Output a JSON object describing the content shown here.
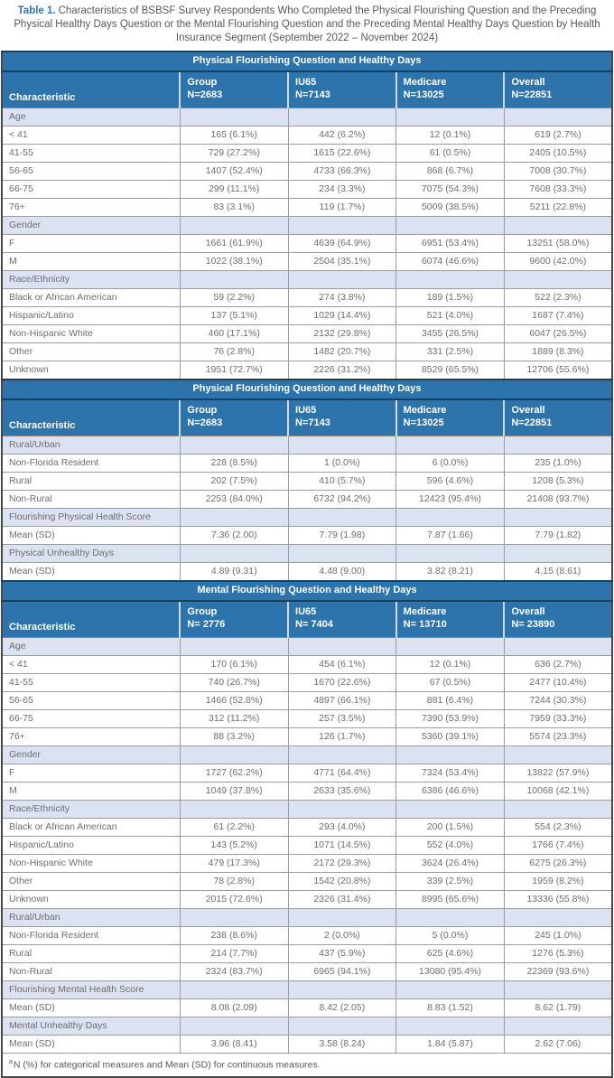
{
  "title": {
    "prefix": "Table 1.",
    "text": "Characteristics of BSBSF Survey Respondents Who Completed the Physical Flourishing Question and the Preceding Physical Healthy Days Question or the Mental Flourishing Question and the Preceding Mental Healthy Days Question by Health Insurance Segment (September 2022 – November 2024)"
  },
  "colors": {
    "band_blue": "#2d74ac",
    "navy_divider": "#17415f",
    "section_row_bg": "#dbe2f1",
    "grid_line": "#9a9c9e",
    "outer_border": "#48484a",
    "body_text": "#6d6e71",
    "title_blue": "#2b76b8",
    "title_gray": "#58595b"
  },
  "footnote": {
    "superscript": "a",
    "text": "N (%) for categorical measures and Mean (SD) for continuous measures."
  },
  "table": {
    "characteristic_header": "Characteristic",
    "blocks": [
      {
        "band_title": "Physical Flourishing Question and Healthy Days",
        "columns": [
          {
            "name": "Group",
            "n": "N=2683"
          },
          {
            "name": "IU65",
            "n": "N=7143"
          },
          {
            "name": "Medicare",
            "n": "N=13025"
          },
          {
            "name": "Overall",
            "n": "N=22851"
          }
        ],
        "rows": [
          {
            "type": "section",
            "label": "Age"
          },
          {
            "type": "data",
            "label": "< 41",
            "values": [
              "165 (6.1%)",
              "442 (6.2%)",
              "12 (0.1%)",
              "619 (2.7%)"
            ]
          },
          {
            "type": "data",
            "label": "41-55",
            "values": [
              "729 (27.2%)",
              "1615 (22.6%)",
              "61 (0.5%)",
              "2405 (10.5%)"
            ]
          },
          {
            "type": "data",
            "label": "56-65",
            "values": [
              "1407 (52.4%)",
              "4733 (66.3%)",
              "868 (6.7%)",
              "7008 (30.7%)"
            ]
          },
          {
            "type": "data",
            "label": "66-75",
            "values": [
              "299 (11.1%)",
              "234 (3.3%)",
              "7075 (54.3%)",
              "7608 (33.3%)"
            ]
          },
          {
            "type": "data",
            "label": "76+",
            "values": [
              "83 (3.1%)",
              "119 (1.7%)",
              "5009 (38.5%)",
              "5211 (22.8%)"
            ]
          },
          {
            "type": "section",
            "label": "Gender"
          },
          {
            "type": "data",
            "label": "F",
            "values": [
              "1661 (61.9%)",
              "4639 (64.9%)",
              "6951 (53.4%)",
              "13251 (58.0%)"
            ]
          },
          {
            "type": "data",
            "label": "M",
            "values": [
              "1022 (38.1%)",
              "2504 (35.1%)",
              "6074 (46.6%)",
              "9600 (42.0%)"
            ]
          },
          {
            "type": "section",
            "label": "Race/Ethnicity"
          },
          {
            "type": "data",
            "label": "Black or African American",
            "values": [
              "59 (2.2%)",
              "274 (3.8%)",
              "189 (1.5%)",
              "522 (2.3%)"
            ]
          },
          {
            "type": "data",
            "label": "Hispanic/Latino",
            "values": [
              "137 (5.1%)",
              "1029 (14.4%)",
              "521 (4.0%)",
              "1687 (7.4%)"
            ]
          },
          {
            "type": "data",
            "label": "Non-Hispanic White",
            "values": [
              "460 (17.1%)",
              "2132 (29.8%)",
              "3455 (26.5%)",
              "6047 (26.5%)"
            ]
          },
          {
            "type": "data",
            "label": "Other",
            "values": [
              "76 (2.8%)",
              "1482 (20.7%)",
              "331 (2.5%)",
              "1889 (8.3%)"
            ]
          },
          {
            "type": "data",
            "label": "Unknown",
            "values": [
              "1951 (72.7%)",
              "2226 (31.2%)",
              "8529 (65.5%)",
              "12706 (55.6%)"
            ]
          }
        ]
      },
      {
        "band_title": "Physical Flourishing Question and Healthy Days",
        "columns": [
          {
            "name": "Group",
            "n": "N=2683"
          },
          {
            "name": "IU65",
            "n": "N=7143"
          },
          {
            "name": "Medicare",
            "n": "N=13025"
          },
          {
            "name": "Overall",
            "n": "N=22851"
          }
        ],
        "rows": [
          {
            "type": "section",
            "label": "Rural/Urban"
          },
          {
            "type": "data",
            "label": "Non-Florida Resident",
            "values": [
              "228 (8.5%)",
              "1 (0.0%)",
              "6 (0.0%)",
              "235 (1.0%)"
            ]
          },
          {
            "type": "data",
            "label": "Rural",
            "values": [
              "202 (7.5%)",
              "410 (5.7%)",
              "596 (4.6%)",
              "1208 (5.3%)"
            ]
          },
          {
            "type": "data",
            "label": "Non-Rural",
            "values": [
              "2253 (84.0%)",
              "6732 (94.2%)",
              "12423 (95.4%)",
              "21408 (93.7%)"
            ]
          },
          {
            "type": "section",
            "label": "Flourishing Physical Health Score"
          },
          {
            "type": "data",
            "label": "Mean (SD)",
            "values": [
              "7.36 (2.00)",
              "7.79 (1.98)",
              "7.87 (1.66)",
              "7.79 (1.82)"
            ]
          },
          {
            "type": "section",
            "label": "Physical Unhealthy Days"
          },
          {
            "type": "data",
            "label": "Mean (SD)",
            "values": [
              "4.89 (9.31)",
              "4.48 (9.00)",
              "3.82 (8.21)",
              "4.15 (8.61)"
            ]
          }
        ]
      },
      {
        "band_title": "Mental Flourishing Question and Healthy Days",
        "columns": [
          {
            "name": "Group",
            "n": "N= 2776"
          },
          {
            "name": "IU65",
            "n": "N= 7404"
          },
          {
            "name": "Medicare",
            "n": "N= 13710"
          },
          {
            "name": "Overall",
            "n": "N= 23890"
          }
        ],
        "rows": [
          {
            "type": "section",
            "label": "Age"
          },
          {
            "type": "data",
            "label": "< 41",
            "values": [
              "170 (6.1%)",
              "454 (6.1%)",
              "12 (0.1%)",
              "636 (2.7%)"
            ]
          },
          {
            "type": "data",
            "label": "41-55",
            "values": [
              "740 (26.7%)",
              "1670 (22.6%)",
              "67 (0.5%)",
              "2477 (10.4%)"
            ]
          },
          {
            "type": "data",
            "label": "56-65",
            "values": [
              "1466 (52.8%)",
              "4897 (66.1%)",
              "881 (6.4%)",
              "7244 (30.3%)"
            ]
          },
          {
            "type": "data",
            "label": "66-75",
            "values": [
              "312 (11.2%)",
              "257 (3.5%)",
              "7390 (53.9%)",
              "7959 (33.3%)"
            ]
          },
          {
            "type": "data",
            "label": "76+",
            "values": [
              "88 (3.2%)",
              "126 (1.7%)",
              "5360 (39.1%)",
              "5574 (23.3%)"
            ]
          },
          {
            "type": "section",
            "label": "Gender"
          },
          {
            "type": "data",
            "label": "F",
            "values": [
              "1727 (62.2%)",
              "4771 (64.4%)",
              "7324 (53.4%)",
              "13822 (57.9%)"
            ]
          },
          {
            "type": "data",
            "label": "M",
            "values": [
              "1049 (37.8%)",
              "2633 (35.6%)",
              "6386 (46.6%)",
              "10068 (42.1%)"
            ]
          },
          {
            "type": "section",
            "label": "Race/Ethnicity"
          },
          {
            "type": "data",
            "label": "Black or African American",
            "values": [
              "61 (2.2%)",
              "293 (4.0%)",
              "200 (1.5%)",
              "554 (2.3%)"
            ]
          },
          {
            "type": "data",
            "label": "Hispanic/Latino",
            "values": [
              "143 (5.2%)",
              "1071 (14.5%)",
              "552 (4.0%)",
              "1766 (7.4%)"
            ]
          },
          {
            "type": "data",
            "label": "Non-Hispanic White",
            "values": [
              "479 (17.3%)",
              "2172 (29.3%)",
              "3624 (26.4%)",
              "6275 (26.3%)"
            ]
          },
          {
            "type": "data",
            "label": "Other",
            "values": [
              "78 (2.8%)",
              "1542 (20.8%)",
              "339 (2.5%)",
              "1959 (8.2%)"
            ]
          },
          {
            "type": "data",
            "label": "Unknown",
            "values": [
              "2015 (72.6%)",
              "2326 (31.4%)",
              "8995 (65.6%)",
              "13336 (55.8%)"
            ]
          },
          {
            "type": "section",
            "label": "Rural/Urban"
          },
          {
            "type": "data",
            "label": "Non-Florida Resident",
            "values": [
              "238 (8.6%)",
              "2 (0.0%)",
              "5 (0.0%)",
              "245 (1.0%)"
            ]
          },
          {
            "type": "data",
            "label": "Rural",
            "values": [
              "214 (7.7%)",
              "437 (5.9%)",
              "625 (4.6%)",
              "1276 (5.3%)"
            ]
          },
          {
            "type": "data",
            "label": "Non-Rural",
            "values": [
              "2324 (83.7%)",
              "6965 (94.1%)",
              "13080 (95.4%)",
              "22369 (93.6%)"
            ]
          },
          {
            "type": "section",
            "label": "Flourishing Mental Health Score"
          },
          {
            "type": "data",
            "label": "Mean (SD)",
            "values": [
              "8.08 (2.09)",
              "8.42 (2.05)",
              "8.83 (1.52)",
              "8.62 (1.79)"
            ]
          },
          {
            "type": "section",
            "label": "Mental Unhealthy Days"
          },
          {
            "type": "data",
            "label": "Mean (SD)",
            "values": [
              "3.96 (8.41)",
              "3.58 (8.24)",
              "1.84 (5.87)",
              "2.62 (7.06)"
            ]
          }
        ]
      }
    ]
  }
}
